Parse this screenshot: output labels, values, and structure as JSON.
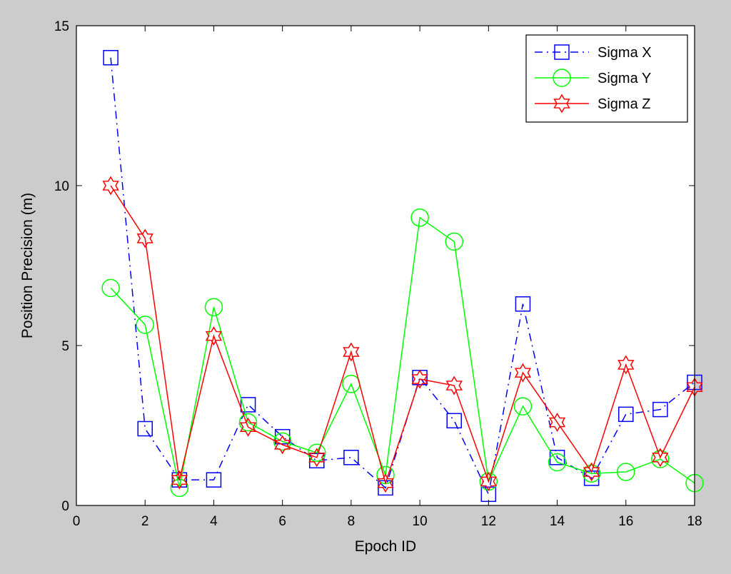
{
  "chart_data": {
    "type": "line",
    "title": "",
    "xlabel": "Epoch ID",
    "ylabel": "Position Precision (m)",
    "xlim": [
      0,
      18
    ],
    "ylim": [
      0,
      15
    ],
    "xticks": [
      0,
      2,
      4,
      6,
      8,
      10,
      12,
      14,
      16,
      18
    ],
    "yticks": [
      0,
      5,
      10,
      15
    ],
    "grid": false,
    "legend_position": "top-right",
    "x": [
      1,
      2,
      3,
      4,
      5,
      6,
      7,
      8,
      9,
      10,
      11,
      12,
      13,
      14,
      15,
      16,
      17,
      18
    ],
    "series": [
      {
        "name": "Sigma X",
        "color": "#0000ff",
        "line_style": "dash-dot",
        "marker": "square",
        "values": [
          14.0,
          2.4,
          0.8,
          0.8,
          3.15,
          2.15,
          1.4,
          1.5,
          0.55,
          4.0,
          2.65,
          0.35,
          6.3,
          1.5,
          0.85,
          2.85,
          3.0,
          3.85
        ]
      },
      {
        "name": "Sigma Y",
        "color": "#00ff00",
        "line_style": "solid",
        "marker": "circle",
        "values": [
          6.8,
          5.65,
          0.55,
          6.2,
          2.6,
          2.0,
          1.65,
          3.8,
          0.95,
          9.0,
          8.25,
          0.75,
          3.1,
          1.35,
          1.0,
          1.05,
          1.45,
          0.7
        ]
      },
      {
        "name": "Sigma Z",
        "color": "#ff0000",
        "line_style": "solid",
        "marker": "hexagram",
        "values": [
          10.0,
          8.35,
          0.8,
          5.3,
          2.45,
          1.9,
          1.5,
          4.8,
          0.7,
          3.95,
          3.75,
          0.75,
          4.15,
          2.6,
          1.05,
          4.4,
          1.5,
          3.7
        ]
      }
    ]
  }
}
